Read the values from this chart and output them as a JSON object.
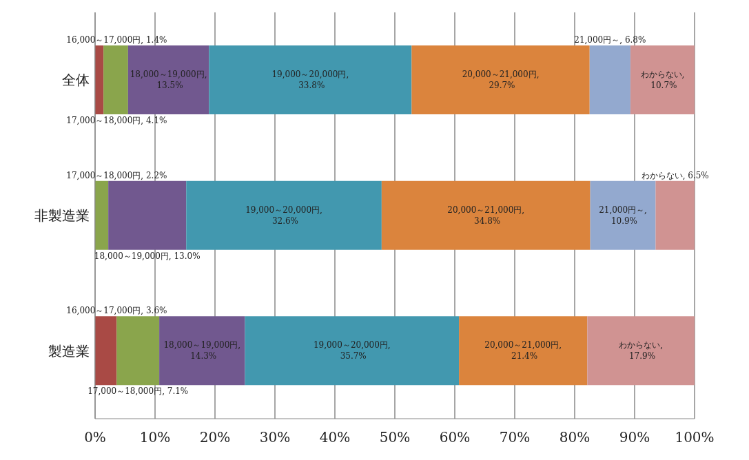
{
  "chart_data": {
    "type": "bar",
    "orientation": "horizontal",
    "stacked": true,
    "categories": [
      "全体",
      "非製造業",
      "製造業"
    ],
    "series": [
      {
        "color": "#a94a45",
        "values": [
          1.4,
          null,
          3.6
        ],
        "value_labels": [
          "16,000～17,000円, 1.4%",
          null,
          "16,000～17,000円, 3.6%"
        ]
      },
      {
        "color": "#8aa54c",
        "values": [
          4.1,
          2.2,
          7.1
        ],
        "value_labels": [
          "17,000～18,000円, 4.1%",
          "17,000～18,000円, 2.2%",
          "17,000～18,000円, 7.1%"
        ]
      },
      {
        "color": "#71588f",
        "values": [
          13.5,
          13.0,
          14.3
        ],
        "value_labels": [
          "18,000～19,000円, 13.5%",
          "18,000～19,000円, 13.0%",
          "18,000～19,000円, 14.3%"
        ]
      },
      {
        "color": "#4298af",
        "values": [
          33.8,
          32.6,
          35.7
        ],
        "value_labels": [
          "19,000～20,000円, 33.8%",
          "19,000～20,000円, 32.6%",
          "19,000～20,000円, 35.7%"
        ]
      },
      {
        "color": "#db843d",
        "values": [
          29.7,
          34.8,
          21.4
        ],
        "value_labels": [
          "20,000～21,000円, 29.7%",
          "20,000～21,000円, 34.8%",
          "20,000～21,000円, 21.4%"
        ]
      },
      {
        "color": "#93a9cf",
        "values": [
          6.8,
          10.9,
          null
        ],
        "value_labels": [
          "21,000円～, 6.8%",
          "21,000円～, 10.9%",
          null
        ]
      },
      {
        "color": "#d09392",
        "values": [
          10.7,
          6.5,
          17.9
        ],
        "value_labels": [
          "わからない, 10.7%",
          "わからない, 6.5%",
          "わからない, 17.9%"
        ]
      }
    ],
    "xlim": [
      0,
      100
    ],
    "xticks": [
      {
        "value": 0,
        "label": "0%"
      },
      {
        "value": 10,
        "label": "10%"
      },
      {
        "value": 20,
        "label": "20%"
      },
      {
        "value": 30,
        "label": "30%"
      },
      {
        "value": 40,
        "label": "40%"
      },
      {
        "value": 50,
        "label": "50%"
      },
      {
        "value": 60,
        "label": "60%"
      },
      {
        "value": 70,
        "label": "70%"
      },
      {
        "value": 80,
        "label": "80%"
      },
      {
        "value": 90,
        "label": "90%"
      },
      {
        "value": 100,
        "label": "100%"
      }
    ],
    "grid": "x"
  }
}
